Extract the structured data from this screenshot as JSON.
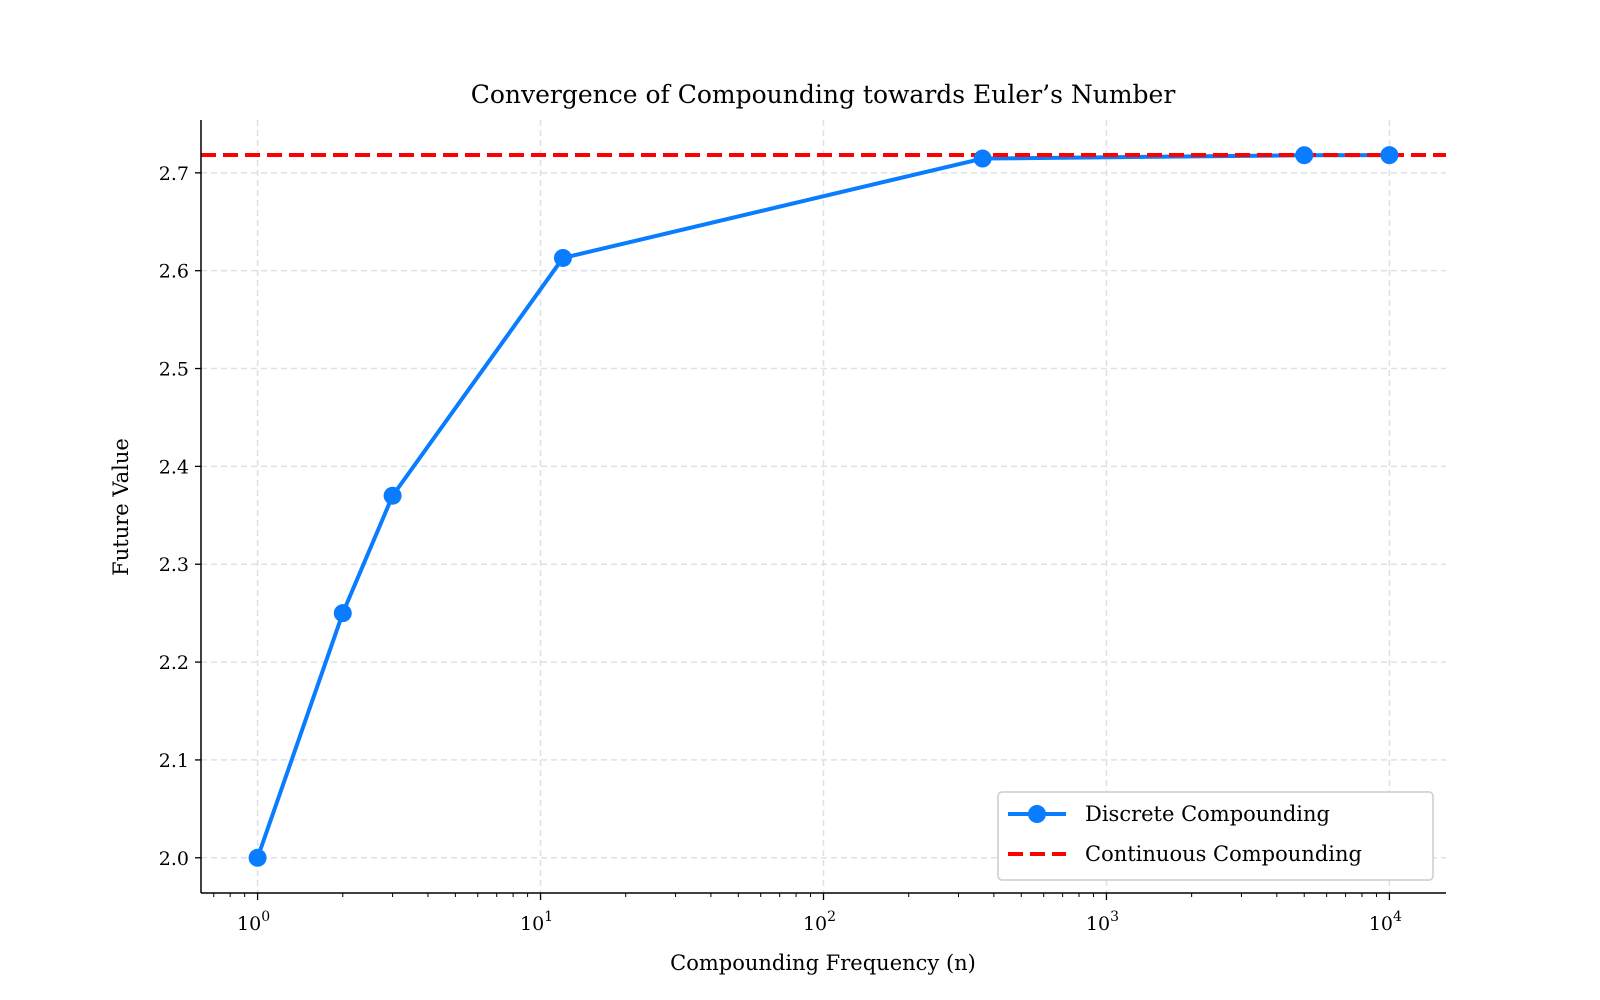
{
  "chart_data": {
    "type": "line",
    "title": "Convergence of Compounding towards Euler’s Number",
    "xlabel": "Compounding Frequency (n)",
    "ylabel": "Future Value",
    "xscale": "log",
    "xlim_log10": [
      -0.2,
      4.2
    ],
    "ylim": [
      1.964,
      2.754
    ],
    "grid": true,
    "legend_position": "lower-right",
    "x_ticks": [
      {
        "exp": "0"
      },
      {
        "exp": "1"
      },
      {
        "exp": "2"
      },
      {
        "exp": "3"
      },
      {
        "exp": "4"
      }
    ],
    "x_tick_base": "10",
    "y_ticks": [
      "2.0",
      "2.1",
      "2.2",
      "2.3",
      "2.4",
      "2.5",
      "2.6",
      "2.7"
    ],
    "series": [
      {
        "name": "Discrete Compounding",
        "color": "#0a7cff",
        "style": "solid-markers",
        "x": [
          1,
          2,
          3,
          12,
          365,
          5000,
          10000
        ],
        "y": [
          2.0,
          2.25,
          2.37,
          2.613,
          2.7146,
          2.718,
          2.7181
        ]
      },
      {
        "name": "Continuous Compounding",
        "color": "#ff0000",
        "style": "dashed",
        "y": 2.71828
      }
    ]
  }
}
